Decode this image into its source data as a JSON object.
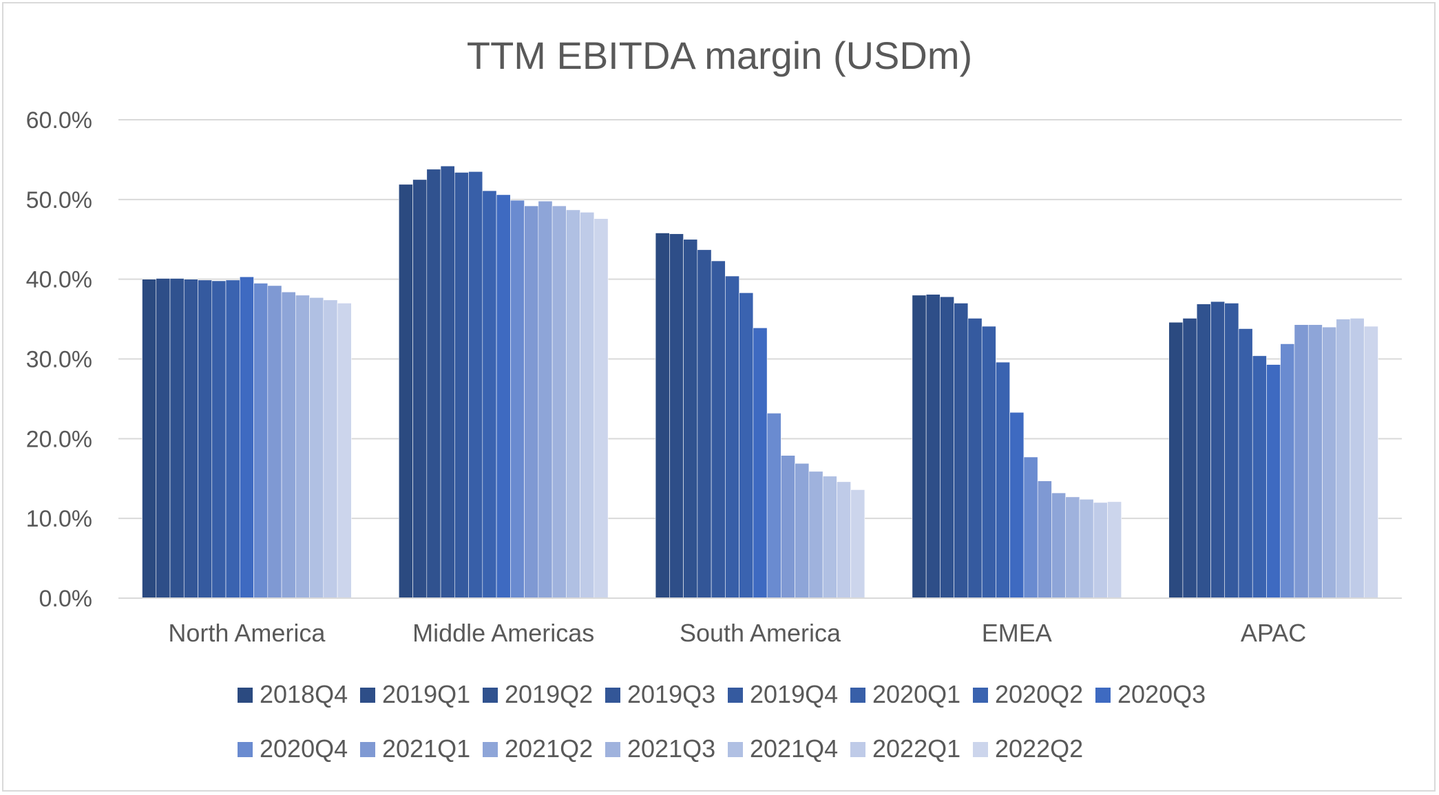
{
  "chart_data": {
    "type": "bar",
    "title": "TTM EBITDA margin (USDm)",
    "xlabel": "",
    "ylabel": "",
    "ylim": [
      0,
      60
    ],
    "y_ticks": [
      "0.0%",
      "10.0%",
      "20.0%",
      "30.0%",
      "40.0%",
      "50.0%",
      "60.0%"
    ],
    "grid": true,
    "legend_position": "bottom",
    "categories": [
      "North America",
      "Middle Americas",
      "South America",
      "EMEA",
      "APAC"
    ],
    "series": [
      {
        "name": "2018Q4",
        "color": "#2b4a80",
        "values": [
          40.0,
          51.9,
          45.8,
          38.0,
          34.6
        ]
      },
      {
        "name": "2019Q1",
        "color": "#2e4e88",
        "values": [
          40.1,
          52.5,
          45.7,
          38.1,
          35.1
        ]
      },
      {
        "name": "2019Q2",
        "color": "#30528f",
        "values": [
          40.1,
          53.8,
          45.0,
          37.8,
          36.9
        ]
      },
      {
        "name": "2019Q3",
        "color": "#335697",
        "values": [
          40.0,
          54.2,
          43.7,
          37.0,
          37.2
        ]
      },
      {
        "name": "2019Q4",
        "color": "#355a9f",
        "values": [
          39.9,
          53.4,
          42.3,
          35.1,
          37.0
        ]
      },
      {
        "name": "2020Q1",
        "color": "#385fa8",
        "values": [
          39.8,
          53.5,
          40.4,
          34.1,
          33.8
        ]
      },
      {
        "name": "2020Q2",
        "color": "#3a63b0",
        "values": [
          39.9,
          51.1,
          38.3,
          29.6,
          30.4
        ]
      },
      {
        "name": "2020Q3",
        "color": "#3e6ac1",
        "values": [
          40.3,
          50.6,
          33.9,
          23.3,
          29.3
        ]
      },
      {
        "name": "2020Q4",
        "color": "#6a8bd0",
        "values": [
          39.5,
          49.9,
          23.2,
          17.7,
          31.9
        ]
      },
      {
        "name": "2021Q1",
        "color": "#7f99d3",
        "values": [
          39.2,
          49.2,
          17.9,
          14.7,
          34.3
        ]
      },
      {
        "name": "2021Q2",
        "color": "#8ea5d8",
        "values": [
          38.4,
          49.8,
          16.9,
          13.2,
          34.3
        ]
      },
      {
        "name": "2021Q3",
        "color": "#9fb2dd",
        "values": [
          38.0,
          49.2,
          15.9,
          12.7,
          34.0
        ]
      },
      {
        "name": "2021Q4",
        "color": "#b0c0e3",
        "values": [
          37.7,
          48.7,
          15.3,
          12.4,
          35.0
        ]
      },
      {
        "name": "2022Q1",
        "color": "#bfcbe8",
        "values": [
          37.4,
          48.4,
          14.6,
          12.0,
          35.1
        ]
      },
      {
        "name": "2022Q2",
        "color": "#ccd5ec",
        "values": [
          37.0,
          47.6,
          13.6,
          12.1,
          34.1
        ]
      }
    ]
  }
}
